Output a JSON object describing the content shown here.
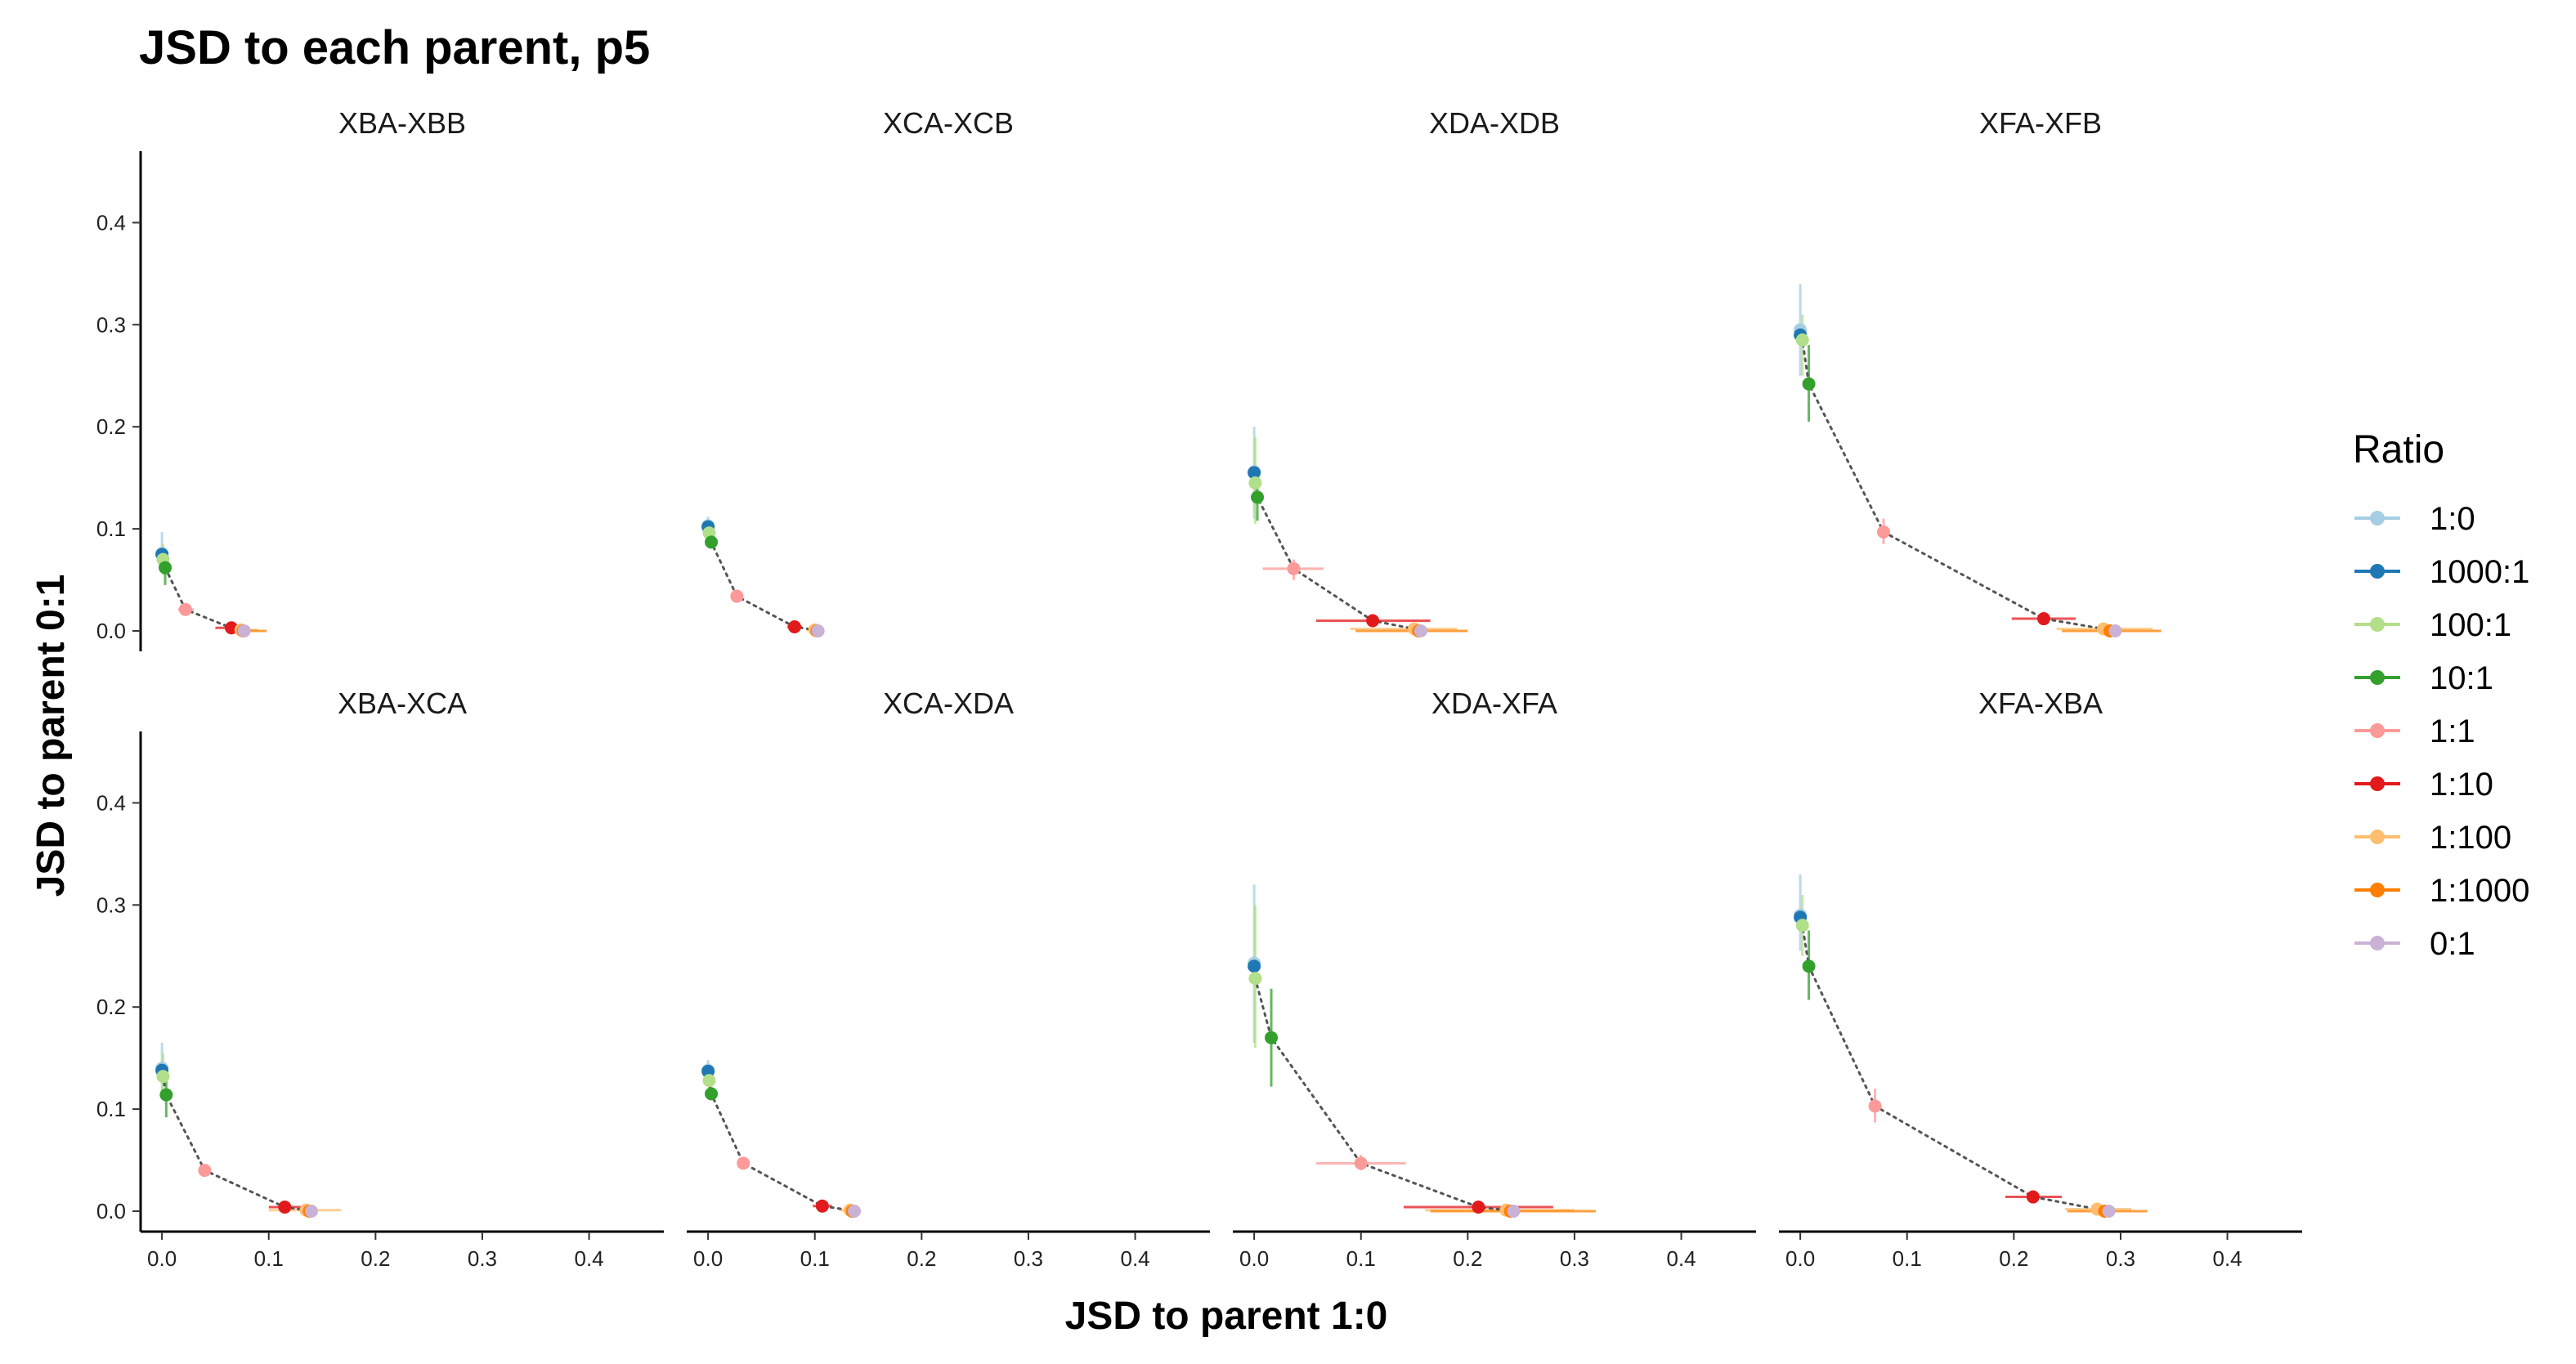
{
  "chart_data": {
    "type": "scatter",
    "title": "JSD to each parent, p5",
    "xlabel": "JSD to parent 1:0",
    "ylabel": "JSD to parent 0:1",
    "xlim": [
      -0.02,
      0.47
    ],
    "ylim": [
      -0.02,
      0.47
    ],
    "x_ticks": [
      0.0,
      0.1,
      0.2,
      0.3,
      0.4
    ],
    "x_tick_labels": [
      "0.0",
      "0.1",
      "0.2",
      "0.3",
      "0.4"
    ],
    "y_ticks": [
      0.0,
      0.1,
      0.2,
      0.3,
      0.4
    ],
    "y_tick_labels": [
      "0.0",
      "0.1",
      "0.2",
      "0.3",
      "0.4"
    ],
    "grid": false,
    "legend": {
      "title": "Ratio",
      "position": "right",
      "entries": [
        {
          "label": "1:0",
          "color": "#A6CEE3"
        },
        {
          "label": "1000:1",
          "color": "#1F78B4"
        },
        {
          "label": "100:1",
          "color": "#B2DF8A"
        },
        {
          "label": "10:1",
          "color": "#33A02C"
        },
        {
          "label": "1:1",
          "color": "#FB9A99"
        },
        {
          "label": "1:10",
          "color": "#E31A1C"
        },
        {
          "label": "1:100",
          "color": "#FDBF6F"
        },
        {
          "label": "1:1000",
          "color": "#FF7F00"
        },
        {
          "label": "0:1",
          "color": "#CAB2D6"
        }
      ]
    },
    "panels": [
      {
        "label": "XBA-XBB",
        "points": [
          {
            "ratio": "1:0",
            "x": 0.0,
            "y": 0.076,
            "y_err": [
              0.062,
              0.097
            ],
            "x_err": [
              0.0,
              0.002
            ]
          },
          {
            "ratio": "1000:1",
            "x": 0.0,
            "y": 0.075,
            "y_err": [
              0.07,
              0.08
            ]
          },
          {
            "ratio": "100:1",
            "x": 0.001,
            "y": 0.07,
            "y_err": [
              0.055,
              0.085
            ]
          },
          {
            "ratio": "10:1",
            "x": 0.003,
            "y": 0.062,
            "y_err": [
              0.045,
              0.078
            ]
          },
          {
            "ratio": "1:1",
            "x": 0.022,
            "y": 0.021,
            "x_err": [
              0.015,
              0.03
            ],
            "y_err": [
              0.016,
              0.026
            ]
          },
          {
            "ratio": "1:10",
            "x": 0.065,
            "y": 0.003,
            "x_err": [
              0.05,
              0.082
            ]
          },
          {
            "ratio": "1:100",
            "x": 0.074,
            "y": 0.001,
            "x_err": [
              0.062,
              0.09
            ]
          },
          {
            "ratio": "1:1000",
            "x": 0.076,
            "y": 0.0,
            "x_err": [
              0.064,
              0.098
            ]
          },
          {
            "ratio": "0:1",
            "x": 0.077,
            "y": 0.0
          }
        ]
      },
      {
        "label": "XCA-XCB",
        "points": [
          {
            "ratio": "1:0",
            "x": 0.0,
            "y": 0.103,
            "y_err": [
              0.093,
              0.112
            ]
          },
          {
            "ratio": "1000:1",
            "x": 0.0,
            "y": 0.102
          },
          {
            "ratio": "100:1",
            "x": 0.001,
            "y": 0.096,
            "y_err": [
              0.088,
              0.104
            ]
          },
          {
            "ratio": "10:1",
            "x": 0.003,
            "y": 0.087
          },
          {
            "ratio": "1:1",
            "x": 0.027,
            "y": 0.034,
            "y_err": [
              0.029,
              0.039
            ]
          },
          {
            "ratio": "1:10",
            "x": 0.081,
            "y": 0.004,
            "x_err": [
              0.074,
              0.088
            ]
          },
          {
            "ratio": "1:100",
            "x": 0.1,
            "y": 0.001,
            "x_err": [
              0.092,
              0.108
            ]
          },
          {
            "ratio": "1:1000",
            "x": 0.102,
            "y": 0.0
          },
          {
            "ratio": "0:1",
            "x": 0.103,
            "y": 0.0
          }
        ]
      },
      {
        "label": "XDA-XDB",
        "points": [
          {
            "ratio": "1:0",
            "x": 0.0,
            "y": 0.156,
            "y_err": [
              0.11,
              0.2
            ]
          },
          {
            "ratio": "1000:1",
            "x": 0.0,
            "y": 0.155
          },
          {
            "ratio": "100:1",
            "x": 0.001,
            "y": 0.145,
            "y_err": [
              0.105,
              0.19
            ]
          },
          {
            "ratio": "10:1",
            "x": 0.003,
            "y": 0.131,
            "y_err": [
              0.108,
              0.15
            ]
          },
          {
            "ratio": "1:1",
            "x": 0.037,
            "y": 0.061,
            "x_err": [
              0.008,
              0.065
            ],
            "y_err": [
              0.05,
              0.07
            ]
          },
          {
            "ratio": "1:10",
            "x": 0.111,
            "y": 0.01,
            "x_err": [
              0.058,
              0.165
            ]
          },
          {
            "ratio": "1:100",
            "x": 0.15,
            "y": 0.002,
            "x_err": [
              0.09,
              0.19
            ]
          },
          {
            "ratio": "1:1000",
            "x": 0.154,
            "y": 0.0,
            "x_err": [
              0.095,
              0.2
            ]
          },
          {
            "ratio": "0:1",
            "x": 0.156,
            "y": 0.0
          }
        ]
      },
      {
        "label": "XFA-XFB",
        "points": [
          {
            "ratio": "1:0",
            "x": 0.0,
            "y": 0.295,
            "y_err": [
              0.25,
              0.34
            ]
          },
          {
            "ratio": "1000:1",
            "x": 0.0,
            "y": 0.29
          },
          {
            "ratio": "100:1",
            "x": 0.002,
            "y": 0.285,
            "y_err": [
              0.25,
              0.31
            ]
          },
          {
            "ratio": "10:1",
            "x": 0.008,
            "y": 0.242,
            "y_err": [
              0.205,
              0.28
            ]
          },
          {
            "ratio": "1:1",
            "x": 0.078,
            "y": 0.097,
            "y_err": [
              0.085,
              0.11
            ]
          },
          {
            "ratio": "1:10",
            "x": 0.228,
            "y": 0.012,
            "x_err": [
              0.198,
              0.258
            ]
          },
          {
            "ratio": "1:100",
            "x": 0.284,
            "y": 0.002,
            "x_err": [
              0.24,
              0.33
            ]
          },
          {
            "ratio": "1:1000",
            "x": 0.29,
            "y": 0.0,
            "x_err": [
              0.245,
              0.338
            ]
          },
          {
            "ratio": "0:1",
            "x": 0.295,
            "y": 0.0
          }
        ]
      },
      {
        "label": "XBA-XCA",
        "points": [
          {
            "ratio": "1:0",
            "x": 0.0,
            "y": 0.14,
            "y_err": [
              0.115,
              0.165
            ]
          },
          {
            "ratio": "1000:1",
            "x": 0.0,
            "y": 0.138
          },
          {
            "ratio": "100:1",
            "x": 0.001,
            "y": 0.132,
            "y_err": [
              0.11,
              0.155
            ]
          },
          {
            "ratio": "10:1",
            "x": 0.004,
            "y": 0.114,
            "y_err": [
              0.092,
              0.133
            ]
          },
          {
            "ratio": "1:1",
            "x": 0.04,
            "y": 0.04,
            "y_err": [
              0.034,
              0.046
            ]
          },
          {
            "ratio": "1:10",
            "x": 0.115,
            "y": 0.004,
            "x_err": [
              0.1,
              0.13
            ]
          },
          {
            "ratio": "1:100",
            "x": 0.135,
            "y": 0.001,
            "x_err": [
              0.1,
              0.168
            ]
          },
          {
            "ratio": "1:1000",
            "x": 0.138,
            "y": 0.0
          },
          {
            "ratio": "0:1",
            "x": 0.14,
            "y": 0.0
          }
        ]
      },
      {
        "label": "XCA-XDA",
        "points": [
          {
            "ratio": "1:0",
            "x": 0.0,
            "y": 0.138,
            "y_err": [
              0.128,
              0.148
            ]
          },
          {
            "ratio": "1000:1",
            "x": 0.0,
            "y": 0.137
          },
          {
            "ratio": "100:1",
            "x": 0.001,
            "y": 0.128,
            "y_err": [
              0.118,
              0.138
            ]
          },
          {
            "ratio": "10:1",
            "x": 0.003,
            "y": 0.115
          },
          {
            "ratio": "1:1",
            "x": 0.033,
            "y": 0.047,
            "y_err": [
              0.041,
              0.053
            ]
          },
          {
            "ratio": "1:10",
            "x": 0.107,
            "y": 0.005,
            "x_err": [
              0.098,
              0.116
            ]
          },
          {
            "ratio": "1:100",
            "x": 0.133,
            "y": 0.001,
            "x_err": [
              0.123,
              0.143
            ]
          },
          {
            "ratio": "1:1000",
            "x": 0.135,
            "y": 0.0
          },
          {
            "ratio": "0:1",
            "x": 0.137,
            "y": 0.0
          }
        ]
      },
      {
        "label": "XDA-XFA",
        "points": [
          {
            "ratio": "1:0",
            "x": 0.0,
            "y": 0.243,
            "y_err": [
              0.165,
              0.32
            ]
          },
          {
            "ratio": "1000:1",
            "x": 0.0,
            "y": 0.24
          },
          {
            "ratio": "100:1",
            "x": 0.001,
            "y": 0.228,
            "y_err": [
              0.16,
              0.3
            ]
          },
          {
            "ratio": "10:1",
            "x": 0.016,
            "y": 0.17,
            "y_err": [
              0.122,
              0.218
            ]
          },
          {
            "ratio": "1:1",
            "x": 0.1,
            "y": 0.047,
            "x_err": [
              0.058,
              0.142
            ],
            "y_err": [
              0.04,
              0.055
            ]
          },
          {
            "ratio": "1:10",
            "x": 0.21,
            "y": 0.004,
            "x_err": [
              0.14,
              0.28
            ]
          },
          {
            "ratio": "1:100",
            "x": 0.236,
            "y": 0.001,
            "x_err": [
              0.16,
              0.3
            ]
          },
          {
            "ratio": "1:1000",
            "x": 0.24,
            "y": 0.0,
            "x_err": [
              0.165,
              0.32
            ]
          },
          {
            "ratio": "0:1",
            "x": 0.243,
            "y": 0.0
          }
        ]
      },
      {
        "label": "XFA-XBA",
        "points": [
          {
            "ratio": "1:0",
            "x": 0.0,
            "y": 0.29,
            "y_err": [
              0.255,
              0.33
            ]
          },
          {
            "ratio": "1000:1",
            "x": 0.0,
            "y": 0.288
          },
          {
            "ratio": "100:1",
            "x": 0.002,
            "y": 0.28,
            "y_err": [
              0.25,
              0.31
            ]
          },
          {
            "ratio": "10:1",
            "x": 0.008,
            "y": 0.24,
            "y_err": [
              0.207,
              0.275
            ]
          },
          {
            "ratio": "1:1",
            "x": 0.07,
            "y": 0.103,
            "y_err": [
              0.087,
              0.12
            ]
          },
          {
            "ratio": "1:10",
            "x": 0.218,
            "y": 0.014,
            "x_err": [
              0.192,
              0.245
            ]
          },
          {
            "ratio": "1:100",
            "x": 0.278,
            "y": 0.002,
            "x_err": [
              0.248,
              0.31
            ]
          },
          {
            "ratio": "1:1000",
            "x": 0.285,
            "y": 0.0,
            "x_err": [
              0.25,
              0.325
            ]
          },
          {
            "ratio": "0:1",
            "x": 0.289,
            "y": 0.0
          }
        ]
      }
    ]
  }
}
